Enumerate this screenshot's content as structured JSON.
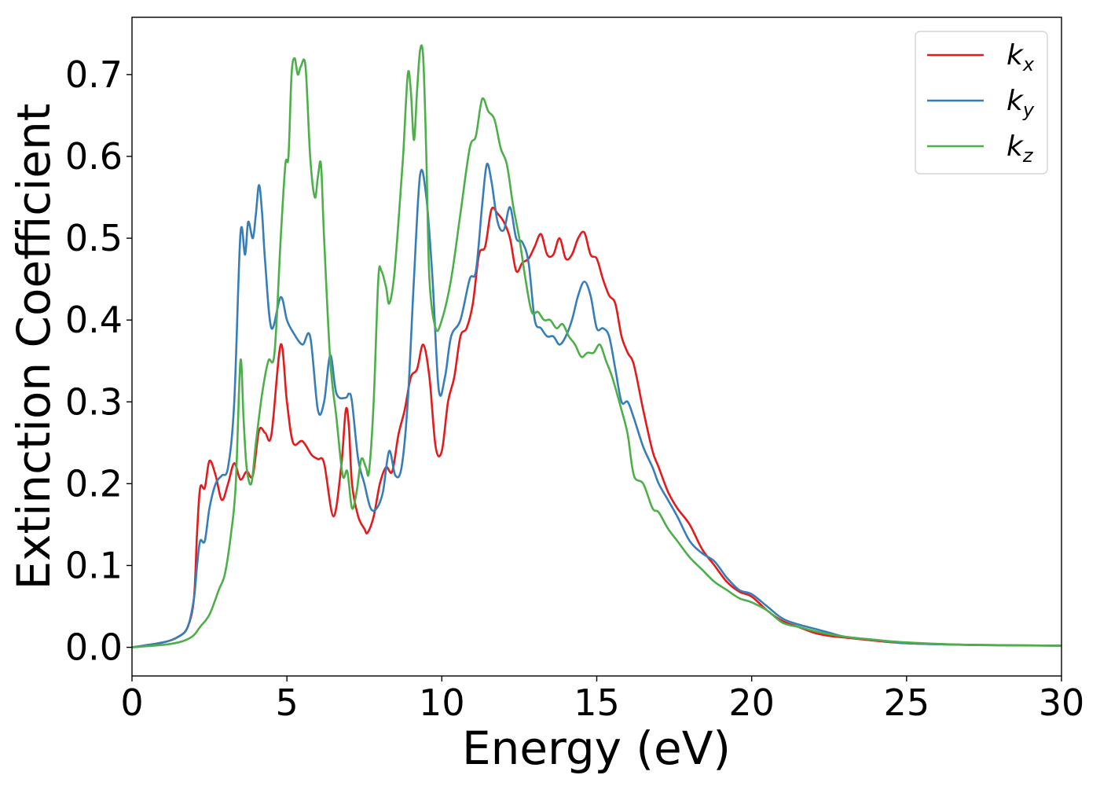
{
  "chart_data": {
    "type": "line",
    "xlabel": "Energy (eV)",
    "ylabel": "Extinction Coefficient",
    "xlim": [
      0,
      30
    ],
    "ylim": [
      -0.035,
      0.77
    ],
    "xticks": [
      0,
      5,
      10,
      15,
      20,
      25,
      30
    ],
    "yticks": [
      0.0,
      0.1,
      0.2,
      0.3,
      0.4,
      0.5,
      0.6,
      0.7
    ],
    "xtick_labels": [
      "0",
      "5",
      "10",
      "15",
      "20",
      "25",
      "30"
    ],
    "ytick_labels": [
      "0.0",
      "0.1",
      "0.2",
      "0.3",
      "0.4",
      "0.5",
      "0.6",
      "0.7"
    ],
    "grid": false,
    "legend_position": "top-right",
    "series": [
      {
        "name": "k_x",
        "label_main": "k",
        "label_sub": "x",
        "color": "#e41a1c",
        "x": [
          0,
          1,
          1.5,
          1.8,
          2.0,
          2.1,
          2.2,
          2.35,
          2.5,
          2.7,
          2.9,
          3.1,
          3.3,
          3.5,
          3.7,
          3.9,
          4.1,
          4.3,
          4.5,
          4.8,
          5.0,
          5.2,
          5.5,
          5.8,
          6.0,
          6.2,
          6.5,
          6.75,
          6.9,
          7.0,
          7.1,
          7.3,
          7.5,
          7.6,
          7.8,
          8.0,
          8.2,
          8.4,
          8.6,
          8.8,
          9.0,
          9.2,
          9.4,
          9.6,
          9.8,
          10.0,
          10.2,
          10.4,
          10.6,
          10.8,
          11.0,
          11.2,
          11.4,
          11.6,
          11.8,
          12.0,
          12.2,
          12.4,
          12.6,
          12.8,
          13.0,
          13.2,
          13.4,
          13.6,
          13.8,
          14.0,
          14.2,
          14.4,
          14.6,
          14.8,
          15.0,
          15.2,
          15.4,
          15.6,
          15.8,
          16.0,
          16.2,
          16.5,
          16.8,
          17.0,
          17.3,
          17.6,
          18.0,
          18.4,
          18.8,
          19.2,
          19.6,
          20.0,
          20.5,
          21.0,
          21.5,
          22.0,
          22.5,
          23.0,
          24.0,
          25.0,
          27.0,
          30.0
        ],
        "y": [
          0.0,
          0.006,
          0.013,
          0.025,
          0.06,
          0.14,
          0.195,
          0.195,
          0.228,
          0.21,
          0.18,
          0.2,
          0.225,
          0.205,
          0.215,
          0.21,
          0.265,
          0.262,
          0.26,
          0.37,
          0.3,
          0.25,
          0.252,
          0.235,
          0.23,
          0.225,
          0.16,
          0.22,
          0.29,
          0.27,
          0.2,
          0.16,
          0.145,
          0.14,
          0.16,
          0.2,
          0.22,
          0.215,
          0.26,
          0.29,
          0.33,
          0.34,
          0.37,
          0.33,
          0.245,
          0.24,
          0.3,
          0.33,
          0.38,
          0.39,
          0.42,
          0.48,
          0.49,
          0.535,
          0.53,
          0.52,
          0.5,
          0.46,
          0.47,
          0.475,
          0.49,
          0.505,
          0.48,
          0.48,
          0.5,
          0.475,
          0.48,
          0.5,
          0.507,
          0.48,
          0.475,
          0.45,
          0.43,
          0.42,
          0.38,
          0.36,
          0.345,
          0.29,
          0.24,
          0.22,
          0.19,
          0.17,
          0.15,
          0.12,
          0.1,
          0.08,
          0.068,
          0.062,
          0.045,
          0.032,
          0.025,
          0.018,
          0.014,
          0.012,
          0.008,
          0.005,
          0.003,
          0.002
        ]
      },
      {
        "name": "k_y",
        "label_main": "k",
        "label_sub": "y",
        "color": "#377eb8",
        "x": [
          0,
          1,
          1.5,
          1.8,
          2.0,
          2.1,
          2.2,
          2.35,
          2.5,
          2.7,
          2.9,
          3.1,
          3.3,
          3.5,
          3.65,
          3.75,
          3.9,
          4.0,
          4.1,
          4.2,
          4.3,
          4.5,
          4.8,
          5.0,
          5.2,
          5.5,
          5.75,
          6.0,
          6.2,
          6.4,
          6.6,
          6.9,
          7.0,
          7.1,
          7.3,
          7.5,
          7.7,
          7.9,
          8.1,
          8.3,
          8.5,
          8.7,
          8.9,
          9.1,
          9.3,
          9.5,
          9.7,
          9.9,
          10.1,
          10.3,
          10.6,
          10.9,
          11.1,
          11.3,
          11.45,
          11.6,
          11.8,
          12.0,
          12.2,
          12.4,
          12.6,
          12.8,
          13.0,
          13.2,
          13.4,
          13.6,
          13.8,
          14.0,
          14.2,
          14.4,
          14.6,
          14.8,
          15.0,
          15.2,
          15.4,
          15.6,
          15.8,
          16.0,
          16.2,
          16.5,
          16.8,
          17.0,
          17.3,
          17.6,
          18.0,
          18.4,
          18.8,
          19.2,
          19.6,
          20.0,
          20.5,
          21.0,
          21.5,
          22.0,
          22.5,
          23.0,
          24.0,
          25.0,
          27.0,
          30.0
        ],
        "y": [
          0.0,
          0.006,
          0.013,
          0.025,
          0.06,
          0.1,
          0.13,
          0.13,
          0.17,
          0.2,
          0.21,
          0.22,
          0.3,
          0.505,
          0.48,
          0.52,
          0.5,
          0.53,
          0.565,
          0.53,
          0.47,
          0.39,
          0.428,
          0.4,
          0.385,
          0.37,
          0.38,
          0.29,
          0.3,
          0.357,
          0.31,
          0.305,
          0.31,
          0.3,
          0.23,
          0.2,
          0.17,
          0.17,
          0.19,
          0.24,
          0.21,
          0.22,
          0.3,
          0.45,
          0.578,
          0.55,
          0.45,
          0.315,
          0.33,
          0.38,
          0.4,
          0.45,
          0.46,
          0.54,
          0.59,
          0.57,
          0.52,
          0.51,
          0.538,
          0.5,
          0.495,
          0.47,
          0.4,
          0.39,
          0.38,
          0.38,
          0.37,
          0.38,
          0.4,
          0.43,
          0.447,
          0.43,
          0.39,
          0.39,
          0.38,
          0.34,
          0.3,
          0.3,
          0.28,
          0.245,
          0.22,
          0.2,
          0.18,
          0.16,
          0.13,
          0.115,
          0.105,
          0.085,
          0.07,
          0.065,
          0.05,
          0.035,
          0.028,
          0.023,
          0.018,
          0.013,
          0.009,
          0.005,
          0.003,
          0.002
        ]
      },
      {
        "name": "k_z",
        "label_main": "k",
        "label_sub": "z",
        "color": "#4daf4a",
        "x": [
          0,
          1,
          1.5,
          1.8,
          2.0,
          2.2,
          2.5,
          2.8,
          3.0,
          3.2,
          3.35,
          3.5,
          3.6,
          3.7,
          3.85,
          4.0,
          4.2,
          4.4,
          4.6,
          4.8,
          4.95,
          5.05,
          5.15,
          5.25,
          5.35,
          5.45,
          5.6,
          5.75,
          5.9,
          6.0,
          6.1,
          6.2,
          6.4,
          6.6,
          6.8,
          6.95,
          7.1,
          7.25,
          7.4,
          7.55,
          7.65,
          7.8,
          7.95,
          8.05,
          8.2,
          8.3,
          8.45,
          8.6,
          8.75,
          8.9,
          9.0,
          9.1,
          9.2,
          9.3,
          9.4,
          9.5,
          9.6,
          9.8,
          10.0,
          10.3,
          10.6,
          10.9,
          11.1,
          11.3,
          11.5,
          11.7,
          11.9,
          12.1,
          12.3,
          12.5,
          12.7,
          12.9,
          13.1,
          13.3,
          13.5,
          13.7,
          13.9,
          14.1,
          14.3,
          14.5,
          14.7,
          14.9,
          15.1,
          15.3,
          15.5,
          15.8,
          16.0,
          16.2,
          16.5,
          16.8,
          17.0,
          17.3,
          17.6,
          18.0,
          18.4,
          18.8,
          19.2,
          19.6,
          20.0,
          20.5,
          21.0,
          21.5,
          22.0,
          22.5,
          23.0,
          24.0,
          25.0,
          27.0,
          30.0
        ],
        "y": [
          0.0,
          0.003,
          0.006,
          0.01,
          0.015,
          0.025,
          0.04,
          0.07,
          0.09,
          0.14,
          0.2,
          0.35,
          0.28,
          0.22,
          0.2,
          0.25,
          0.31,
          0.35,
          0.36,
          0.5,
          0.59,
          0.6,
          0.7,
          0.72,
          0.7,
          0.71,
          0.71,
          0.6,
          0.55,
          0.575,
          0.59,
          0.5,
          0.35,
          0.28,
          0.21,
          0.215,
          0.17,
          0.19,
          0.23,
          0.22,
          0.215,
          0.3,
          0.45,
          0.46,
          0.44,
          0.42,
          0.45,
          0.52,
          0.6,
          0.7,
          0.68,
          0.62,
          0.68,
          0.73,
          0.72,
          0.6,
          0.45,
          0.39,
          0.4,
          0.45,
          0.53,
          0.61,
          0.625,
          0.67,
          0.655,
          0.645,
          0.61,
          0.59,
          0.54,
          0.5,
          0.45,
          0.41,
          0.41,
          0.4,
          0.4,
          0.39,
          0.395,
          0.38,
          0.37,
          0.355,
          0.36,
          0.36,
          0.37,
          0.35,
          0.33,
          0.29,
          0.26,
          0.21,
          0.2,
          0.17,
          0.165,
          0.145,
          0.13,
          0.11,
          0.095,
          0.08,
          0.07,
          0.06,
          0.055,
          0.045,
          0.03,
          0.025,
          0.02,
          0.016,
          0.013,
          0.009,
          0.006,
          0.003,
          0.002
        ]
      }
    ]
  }
}
